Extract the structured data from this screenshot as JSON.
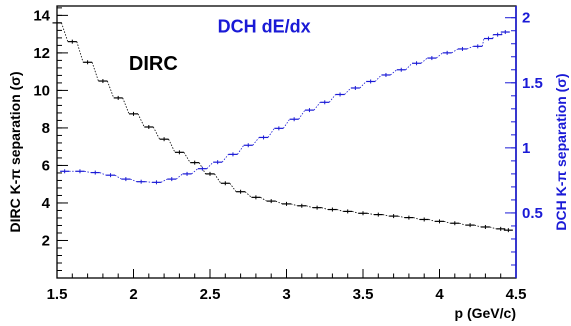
{
  "chart_data": {
    "type": "scatter",
    "xlabel": "p (GeV/c)",
    "ylabel_left": "DIRC K-π separation (σ)",
    "ylabel_right": "DCH K-π separation (σ)",
    "xlim": [
      1.5,
      4.5
    ],
    "ylim_left": [
      0,
      14.5
    ],
    "ylim_right": [
      0,
      2.09
    ],
    "x_ticks": [
      1.5,
      2,
      2.5,
      3,
      3.5,
      4,
      4.5
    ],
    "y_left_ticks": [
      2,
      4,
      6,
      8,
      10,
      12,
      14
    ],
    "y_right_ticks": [
      0.5,
      1,
      1.5,
      2
    ],
    "grid": false,
    "series": [
      {
        "name": "DIRC",
        "axis": "left",
        "color": "#000000",
        "points": [
          [
            1.5,
            13.6
          ],
          [
            1.6,
            12.6
          ],
          [
            1.7,
            11.5
          ],
          [
            1.8,
            10.5
          ],
          [
            1.9,
            9.6
          ],
          [
            2.0,
            8.75
          ],
          [
            2.1,
            8.05
          ],
          [
            2.2,
            7.4
          ],
          [
            2.3,
            6.7
          ],
          [
            2.4,
            6.15
          ],
          [
            2.5,
            5.55
          ],
          [
            2.6,
            5.05
          ],
          [
            2.7,
            4.6
          ],
          [
            2.8,
            4.3
          ],
          [
            2.9,
            4.1
          ],
          [
            3.0,
            3.95
          ],
          [
            3.1,
            3.85
          ],
          [
            3.2,
            3.75
          ],
          [
            3.3,
            3.65
          ],
          [
            3.4,
            3.55
          ],
          [
            3.5,
            3.45
          ],
          [
            3.6,
            3.38
          ],
          [
            3.7,
            3.3
          ],
          [
            3.8,
            3.22
          ],
          [
            3.9,
            3.12
          ],
          [
            4.0,
            3.02
          ],
          [
            4.1,
            2.92
          ],
          [
            4.2,
            2.82
          ],
          [
            4.3,
            2.72
          ],
          [
            4.4,
            2.62
          ],
          [
            4.45,
            2.55
          ]
        ]
      },
      {
        "name": "DCH dE/dx",
        "axis": "right",
        "color": "#1a1ad6",
        "points": [
          [
            1.55,
            0.82
          ],
          [
            1.65,
            0.82
          ],
          [
            1.75,
            0.81
          ],
          [
            1.85,
            0.79
          ],
          [
            1.95,
            0.76
          ],
          [
            2.05,
            0.74
          ],
          [
            2.15,
            0.735
          ],
          [
            2.25,
            0.76
          ],
          [
            2.35,
            0.8
          ],
          [
            2.45,
            0.84
          ],
          [
            2.55,
            0.89
          ],
          [
            2.65,
            0.95
          ],
          [
            2.75,
            1.02
          ],
          [
            2.85,
            1.08
          ],
          [
            2.95,
            1.15
          ],
          [
            3.05,
            1.22
          ],
          [
            3.15,
            1.29
          ],
          [
            3.25,
            1.35
          ],
          [
            3.35,
            1.41
          ],
          [
            3.45,
            1.46
          ],
          [
            3.55,
            1.51
          ],
          [
            3.65,
            1.56
          ],
          [
            3.75,
            1.6
          ],
          [
            3.85,
            1.65
          ],
          [
            3.95,
            1.69
          ],
          [
            4.05,
            1.73
          ],
          [
            4.15,
            1.76
          ],
          [
            4.25,
            1.78
          ],
          [
            4.32,
            1.84
          ],
          [
            4.38,
            1.87
          ],
          [
            4.43,
            1.89
          ]
        ]
      }
    ],
    "annotations": [
      {
        "text": "DIRC",
        "x": 1.97,
        "y_left": 11.1,
        "color": "#000000"
      },
      {
        "text": "DCH dE/dx",
        "x": 2.55,
        "y_left": 13.1,
        "color": "#1a1ad6"
      }
    ]
  }
}
